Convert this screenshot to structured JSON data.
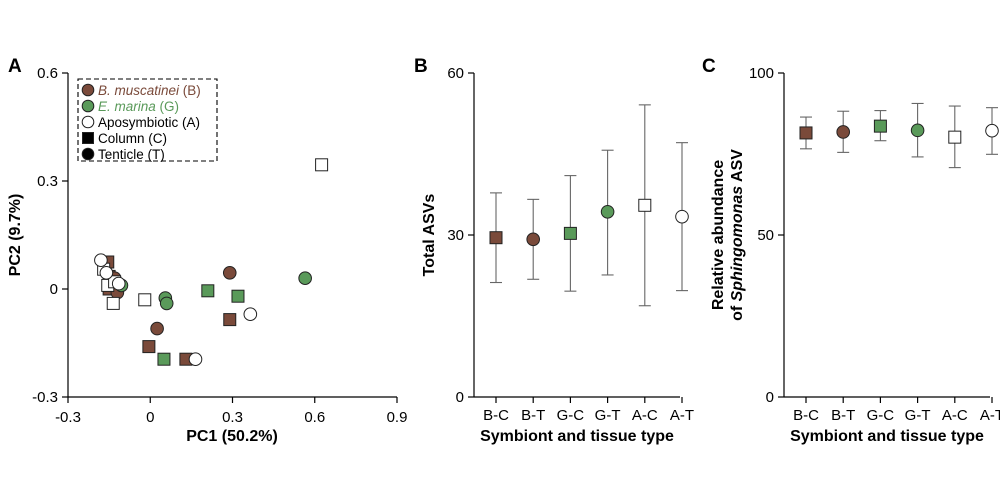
{
  "colors": {
    "brown": "#7a4a3a",
    "green": "#5a9a5a",
    "white": "#ffffff",
    "edge": "#222222",
    "error": "#666666"
  },
  "panels": {
    "a": {
      "letter": "A",
      "xlabel": "PC1 (50.2%)",
      "ylabel": "PC2 (9.7%)",
      "xticks": [
        "-0.3",
        "0",
        "0.3",
        "0.6",
        "0.9"
      ],
      "yticks": [
        "-0.3",
        "0",
        "0.3",
        "0.6"
      ],
      "legend": [
        {
          "name": "B. muscatinei",
          "suffix": " (B)",
          "marker": "circle",
          "color": "brown",
          "italic": true
        },
        {
          "name": "E. marina",
          "suffix": " (G)",
          "marker": "circle",
          "color": "green",
          "italic": true
        },
        {
          "name": "Aposymbiotic (A)",
          "suffix": "",
          "marker": "circle",
          "color": "white",
          "italic": false
        },
        {
          "name": "Column (C)",
          "suffix": "",
          "marker": "square",
          "color": "black",
          "italic": false
        },
        {
          "name": "Tenticle (T)",
          "suffix": "",
          "marker": "circle",
          "color": "black",
          "italic": false
        }
      ]
    },
    "b": {
      "letter": "B",
      "xlabel": "Symbiont and tissue type",
      "ylabel": "Total ASVs",
      "yticks": [
        "0",
        "30",
        "60"
      ]
    },
    "c": {
      "letter": "C",
      "xlabel": "Symbiont and tissue type",
      "ylabel_line1": "Relative abundance",
      "ylabel_prefix": "of ",
      "ylabel_italic": "Sphingomonas",
      "ylabel_suffix": " ASV",
      "yticks": [
        "0",
        "50",
        "100"
      ]
    }
  },
  "chart_data": [
    {
      "type": "scatter",
      "panel": "A",
      "xlabel": "PC1 (50.2%)",
      "ylabel": "PC2 (9.7%)",
      "xlim": [
        -0.3,
        0.9
      ],
      "ylim": [
        -0.3,
        0.6
      ],
      "series": [
        {
          "name": "B. muscatinei (B)",
          "group": "B",
          "tissue": "C",
          "marker": "square",
          "color": "brown",
          "points": [
            [
              -0.155,
              0.075
            ],
            [
              -0.15,
              0.035
            ],
            [
              -0.15,
              0.0
            ],
            [
              -0.005,
              -0.16
            ],
            [
              0.13,
              -0.195
            ],
            [
              0.29,
              -0.085
            ]
          ]
        },
        {
          "name": "B. muscatinei (B)",
          "group": "B",
          "tissue": "T",
          "marker": "circle",
          "color": "brown",
          "points": [
            [
              -0.13,
              0.03
            ],
            [
              -0.12,
              -0.01
            ],
            [
              0.025,
              -0.11
            ],
            [
              0.29,
              0.045
            ]
          ]
        },
        {
          "name": "E. marina (G)",
          "group": "G",
          "tissue": "C",
          "marker": "square",
          "color": "green",
          "points": [
            [
              0.05,
              -0.195
            ],
            [
              0.21,
              -0.005
            ],
            [
              0.32,
              -0.02
            ]
          ]
        },
        {
          "name": "E. marina (G)",
          "group": "G",
          "tissue": "T",
          "marker": "circle",
          "color": "green",
          "points": [
            [
              -0.105,
              0.01
            ],
            [
              0.055,
              -0.025
            ],
            [
              0.06,
              -0.04
            ],
            [
              0.565,
              0.03
            ]
          ]
        },
        {
          "name": "Aposymbiotic (A)",
          "group": "A",
          "tissue": "C",
          "marker": "square",
          "color": "white",
          "points": [
            [
              -0.17,
              0.055
            ],
            [
              -0.155,
              0.01
            ],
            [
              -0.13,
              0.02
            ],
            [
              -0.135,
              -0.04
            ],
            [
              -0.02,
              -0.03
            ],
            [
              0.625,
              0.345
            ]
          ]
        },
        {
          "name": "Aposymbiotic (A)",
          "group": "A",
          "tissue": "T",
          "marker": "circle",
          "color": "white",
          "points": [
            [
              -0.18,
              0.08
            ],
            [
              -0.16,
              0.045
            ],
            [
              -0.115,
              0.015
            ],
            [
              0.165,
              -0.195
            ],
            [
              0.365,
              -0.07
            ]
          ]
        }
      ]
    },
    {
      "type": "scatter",
      "panel": "B",
      "xlabel": "Symbiont and tissue type",
      "ylabel": "Total ASVs",
      "ylim": [
        0,
        60
      ],
      "categories": [
        "B-C",
        "B-T",
        "G-C",
        "G-T",
        "A-C",
        "A-T"
      ],
      "values": [
        29.5,
        29.2,
        30.3,
        34.3,
        35.5,
        33.4
      ],
      "error_low": [
        21.2,
        21.8,
        19.6,
        22.6,
        16.9,
        19.7
      ],
      "error_high": [
        37.8,
        36.6,
        41.0,
        45.7,
        54.1,
        47.1
      ],
      "markers": [
        "square",
        "circle",
        "square",
        "circle",
        "square",
        "circle"
      ],
      "colors": [
        "brown",
        "brown",
        "green",
        "green",
        "white",
        "white"
      ]
    },
    {
      "type": "scatter",
      "panel": "C",
      "xlabel": "Symbiont and tissue type",
      "ylabel": "Relative abundance of Sphingomonas ASV",
      "ylim": [
        0,
        100
      ],
      "categories": [
        "B-C",
        "B-T",
        "G-C",
        "G-T",
        "A-C",
        "A-T"
      ],
      "values": [
        81.5,
        81.8,
        83.6,
        82.3,
        80.2,
        82.2
      ],
      "error_low": [
        76.6,
        75.5,
        79.1,
        74.1,
        70.8,
        74.9
      ],
      "error_high": [
        86.4,
        88.2,
        88.4,
        90.6,
        89.8,
        89.3
      ],
      "markers": [
        "square",
        "circle",
        "square",
        "circle",
        "square",
        "circle"
      ],
      "colors": [
        "brown",
        "brown",
        "green",
        "green",
        "white",
        "white"
      ]
    }
  ]
}
